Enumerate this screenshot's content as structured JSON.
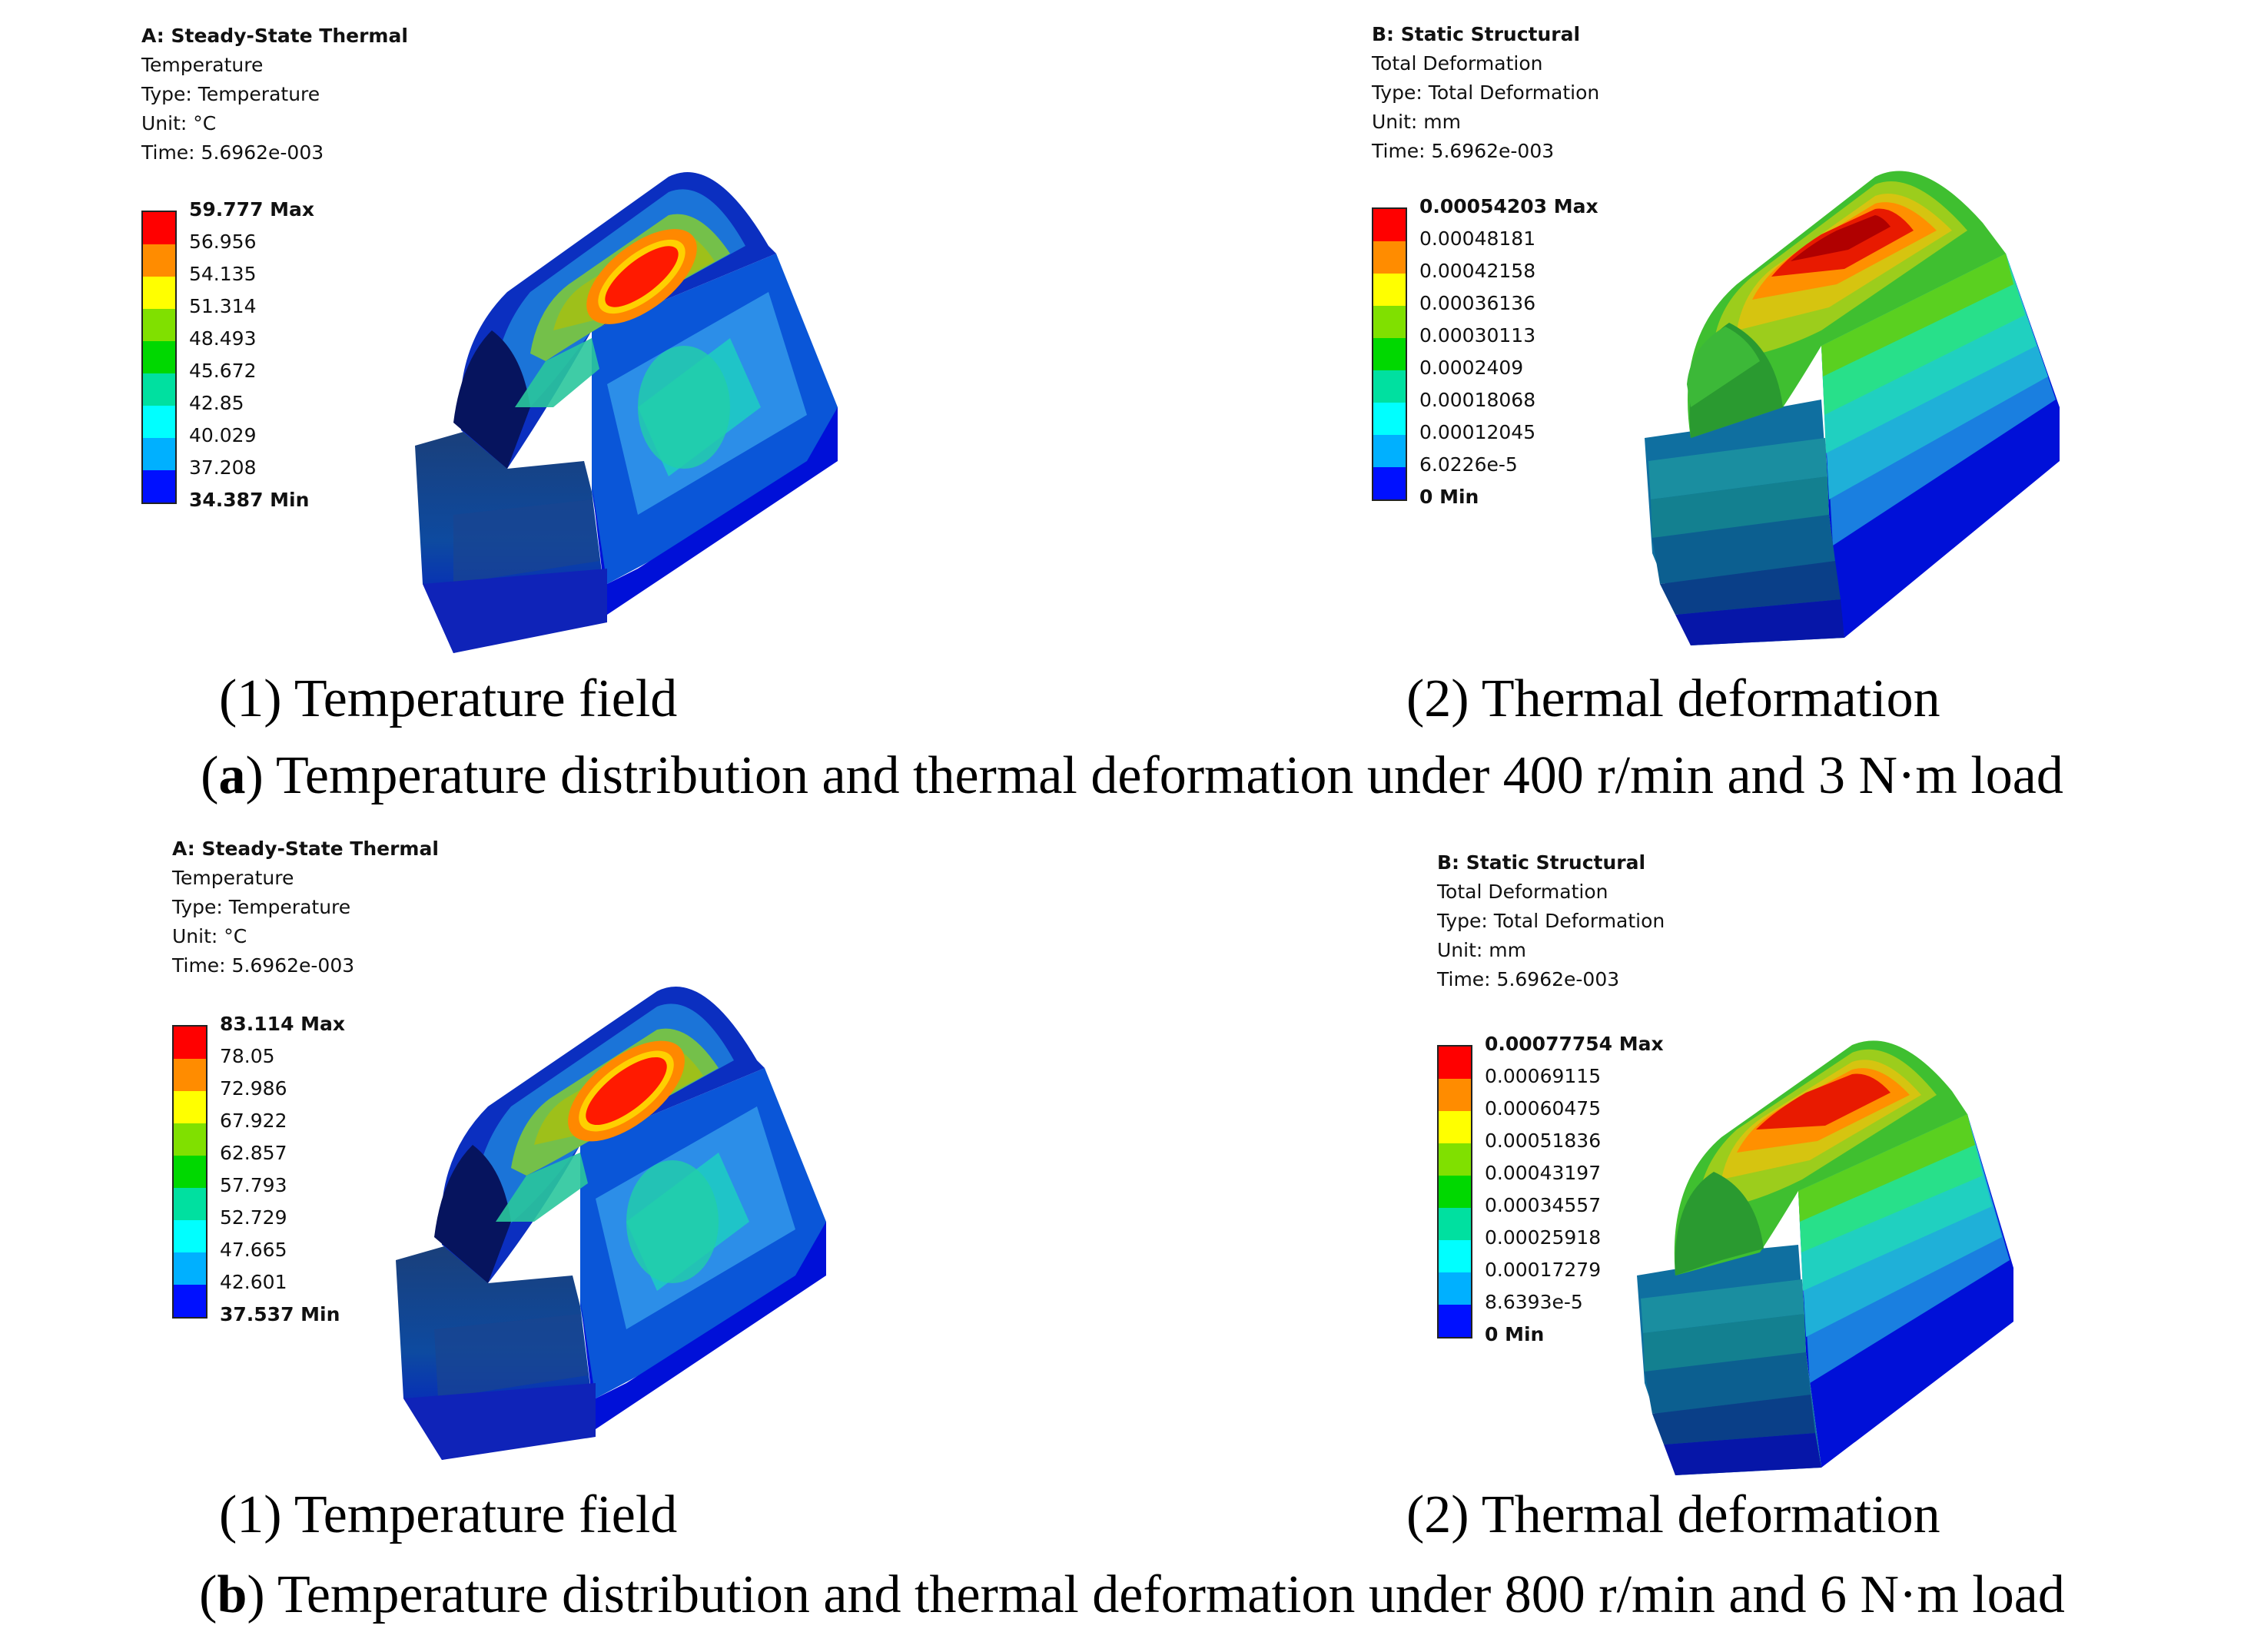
{
  "legend_colors": [
    "#ff0000",
    "#ff8c00",
    "#ffff00",
    "#80e000",
    "#00d800",
    "#00e0a0",
    "#00ffff",
    "#00b0ff",
    "#0010ff"
  ],
  "sections": [
    {
      "temperature": {
        "header": "A: Steady-State Thermal",
        "lines": [
          "Temperature",
          "Type: Temperature",
          "Unit: °C",
          "Time: 5.6962e-003"
        ],
        "max_label": "59.777 Max",
        "values": [
          "56.956",
          "54.135",
          "51.314",
          "48.493",
          "45.672",
          "42.85",
          "40.029",
          "37.208"
        ],
        "min_label": "34.387 Min",
        "caption": "(1) Temperature field"
      },
      "deformation": {
        "header": "B: Static Structural",
        "lines": [
          "Total Deformation",
          "Type: Total Deformation",
          "Unit: mm",
          "Time: 5.6962e-003"
        ],
        "max_label": "0.00054203 Max",
        "values": [
          "0.00048181",
          "0.00042158",
          "0.00036136",
          "0.00030113",
          "0.0002409",
          "0.00018068",
          "0.00012045",
          "6.0226e-5"
        ],
        "min_label": "0 Min",
        "caption": "(2) Thermal deformation"
      },
      "caption_label": "a",
      "caption_text": "Temperature distribution and thermal deformation under 400 r/min and 3 N·m load"
    },
    {
      "temperature": {
        "header": "A: Steady-State Thermal",
        "lines": [
          "Temperature",
          "Type: Temperature",
          "Unit: °C",
          "Time: 5.6962e-003"
        ],
        "max_label": "83.114 Max",
        "values": [
          "78.05",
          "72.986",
          "67.922",
          "62.857",
          "57.793",
          "52.729",
          "47.665",
          "42.601"
        ],
        "min_label": "37.537 Min",
        "caption": "(1) Temperature field"
      },
      "deformation": {
        "header": "B: Static Structural",
        "lines": [
          "Total Deformation",
          "Type: Total Deformation",
          "Unit: mm",
          "Time: 5.6962e-003"
        ],
        "max_label": "0.00077754 Max",
        "values": [
          "0.00069115",
          "0.00060475",
          "0.00051836",
          "0.00043197",
          "0.00034557",
          "0.00025918",
          "0.00017279",
          "8.6393e-5"
        ],
        "min_label": "0 Min",
        "caption": "(2) Thermal deformation"
      },
      "caption_label": "b",
      "caption_text": "Temperature distribution and thermal deformation under 800 r/min and 6 N·m load"
    }
  ]
}
